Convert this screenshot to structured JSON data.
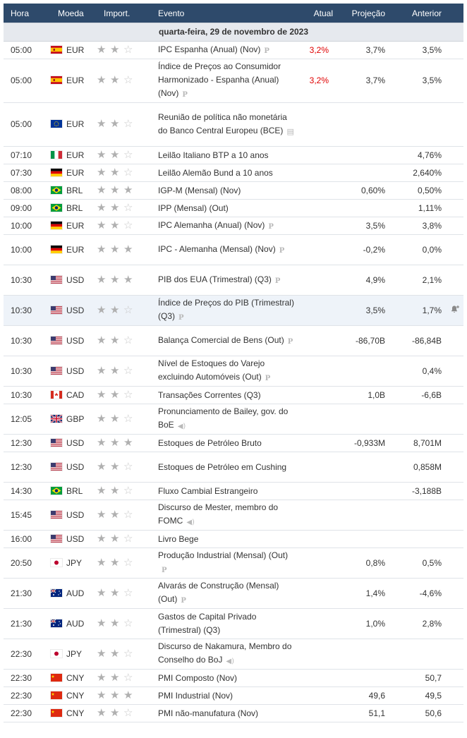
{
  "headers": {
    "time": "Hora",
    "currency": "Moeda",
    "importance": "Import.",
    "event": "Evento",
    "actual": "Atual",
    "forecast": "Projeção",
    "previous": "Anterior"
  },
  "date_label": "quarta-feira, 29 de novembro de 2023",
  "colors": {
    "header_bg": "#2e4a6b",
    "actual_red": "#e00000",
    "date_row_bg": "#e6e9ee",
    "highlight_row_bg": "#eef3f9"
  },
  "rows": [
    {
      "time": "05:00",
      "country": "spain",
      "currency": "EUR",
      "stars": 2,
      "event": "IPC Espanha (Anual) (Nov)",
      "icon": "preliminary-icon",
      "icon_glyph": "P",
      "actual": "3,2%",
      "forecast": "3,7%",
      "previous": "3,5%"
    },
    {
      "time": "05:00",
      "country": "spain",
      "currency": "EUR",
      "stars": 2,
      "event": "Índice de Preços ao Consumidor Harmonizado - Espanha (Anual) (Nov)",
      "icon": "preliminary-icon",
      "icon_glyph": "P",
      "actual": "3,2%",
      "forecast": "3,7%",
      "previous": "3,5%"
    },
    {
      "time": "05:00",
      "country": "eu",
      "currency": "EUR",
      "stars": 2,
      "event": "Reunião de política não monetária do Banco Central Europeu (BCE)",
      "icon": "document-icon",
      "icon_glyph": "▤",
      "actual": "",
      "forecast": "",
      "previous": ""
    },
    {
      "time": "07:10",
      "country": "italy",
      "currency": "EUR",
      "stars": 2,
      "event": "Leilão Italiano BTP a 10 anos",
      "icon": "",
      "icon_glyph": "",
      "actual": "",
      "forecast": "",
      "previous": "4,76%"
    },
    {
      "time": "07:30",
      "country": "germany",
      "currency": "EUR",
      "stars": 2,
      "event": "Leilão Alemão Bund a 10 anos",
      "icon": "",
      "icon_glyph": "",
      "actual": "",
      "forecast": "",
      "previous": "2,640%"
    },
    {
      "time": "08:00",
      "country": "brazil",
      "currency": "BRL",
      "stars": 3,
      "event": "IGP-M (Mensal) (Nov)",
      "icon": "",
      "icon_glyph": "",
      "actual": "",
      "forecast": "0,60%",
      "previous": "0,50%"
    },
    {
      "time": "09:00",
      "country": "brazil",
      "currency": "BRL",
      "stars": 2,
      "event": "IPP (Mensal) (Out)",
      "icon": "",
      "icon_glyph": "",
      "actual": "",
      "forecast": "",
      "previous": "1,11%"
    },
    {
      "time": "10:00",
      "country": "germany",
      "currency": "EUR",
      "stars": 2,
      "event": "IPC Alemanha (Anual) (Nov)",
      "icon": "preliminary-icon",
      "icon_glyph": "P",
      "actual": "",
      "forecast": "3,5%",
      "previous": "3,8%"
    },
    {
      "time": "10:00",
      "country": "germany",
      "currency": "EUR",
      "stars": 3,
      "event": "IPC - Alemanha (Mensal) (Nov)",
      "icon": "preliminary-icon",
      "icon_glyph": "P",
      "actual": "",
      "forecast": "-0,2%",
      "previous": "0,0%"
    },
    {
      "time": "10:30",
      "country": "usa",
      "currency": "USD",
      "stars": 3,
      "event": "PIB dos EUA (Trimestral) (Q3)",
      "icon": "preliminary-icon",
      "icon_glyph": "P",
      "actual": "",
      "forecast": "4,9%",
      "previous": "2,1%"
    },
    {
      "time": "10:30",
      "country": "usa",
      "currency": "USD",
      "stars": 2,
      "event": "Índice de Preços do PIB (Trimestral) (Q3)",
      "icon": "preliminary-icon",
      "icon_glyph": "P",
      "actual": "",
      "forecast": "3,5%",
      "previous": "1,7%",
      "highlight": true,
      "alert": true
    },
    {
      "time": "10:30",
      "country": "usa",
      "currency": "USD",
      "stars": 2,
      "event": "Balança Comercial de Bens (Out)",
      "icon": "preliminary-icon",
      "icon_glyph": "P",
      "actual": "",
      "forecast": "-86,70B",
      "previous": "-86,84B"
    },
    {
      "time": "10:30",
      "country": "usa",
      "currency": "USD",
      "stars": 2,
      "event": "Nível de Estoques do Varejo excluindo Automóveis (Out)",
      "icon": "preliminary-icon",
      "icon_glyph": "P",
      "actual": "",
      "forecast": "",
      "previous": "0,4%"
    },
    {
      "time": "10:30",
      "country": "canada",
      "currency": "CAD",
      "stars": 2,
      "event": "Transações Correntes (Q3)",
      "icon": "",
      "icon_glyph": "",
      "actual": "",
      "forecast": "1,0B",
      "previous": "-6,6B"
    },
    {
      "time": "12:05",
      "country": "uk",
      "currency": "GBP",
      "stars": 2,
      "event": "Pronunciamento de Bailey, gov. do BoE",
      "icon": "speaker-icon",
      "icon_glyph": "◀)",
      "actual": "",
      "forecast": "",
      "previous": ""
    },
    {
      "time": "12:30",
      "country": "usa",
      "currency": "USD",
      "stars": 3,
      "event": "Estoques de Petróleo Bruto",
      "icon": "",
      "icon_glyph": "",
      "actual": "",
      "forecast": "-0,933M",
      "previous": "8,701M"
    },
    {
      "time": "12:30",
      "country": "usa",
      "currency": "USD",
      "stars": 2,
      "event": "Estoques de Petróleo em Cushing",
      "icon": "",
      "icon_glyph": "",
      "actual": "",
      "forecast": "",
      "previous": "0,858M"
    },
    {
      "time": "14:30",
      "country": "brazil",
      "currency": "BRL",
      "stars": 2,
      "event": "Fluxo Cambial Estrangeiro",
      "icon": "",
      "icon_glyph": "",
      "actual": "",
      "forecast": "",
      "previous": "-3,188B"
    },
    {
      "time": "15:45",
      "country": "usa",
      "currency": "USD",
      "stars": 2,
      "event": "Discurso de Mester, membro do FOMC",
      "icon": "speaker-icon",
      "icon_glyph": "◀)",
      "actual": "",
      "forecast": "",
      "previous": ""
    },
    {
      "time": "16:00",
      "country": "usa",
      "currency": "USD",
      "stars": 2,
      "event": "Livro Bege",
      "icon": "",
      "icon_glyph": "",
      "actual": "",
      "forecast": "",
      "previous": ""
    },
    {
      "time": "20:50",
      "country": "japan",
      "currency": "JPY",
      "stars": 2,
      "event": "Produção Industrial (Mensal) (Out)",
      "icon": "preliminary-icon",
      "icon_glyph": "P",
      "actual": "",
      "forecast": "0,8%",
      "previous": "0,5%"
    },
    {
      "time": "21:30",
      "country": "australia",
      "currency": "AUD",
      "stars": 2,
      "event": "Alvarás de Construção (Mensal) (Out)",
      "icon": "preliminary-icon",
      "icon_glyph": "P",
      "actual": "",
      "forecast": "1,4%",
      "previous": "-4,6%"
    },
    {
      "time": "21:30",
      "country": "australia",
      "currency": "AUD",
      "stars": 2,
      "event": "Gastos de Capital Privado (Trimestral) (Q3)",
      "icon": "",
      "icon_glyph": "",
      "actual": "",
      "forecast": "1,0%",
      "previous": "2,8%"
    },
    {
      "time": "22:30",
      "country": "japan",
      "currency": "JPY",
      "stars": 2,
      "event": "Discurso de Nakamura, Membro do Conselho do BoJ",
      "icon": "speaker-icon",
      "icon_glyph": "◀)",
      "actual": "",
      "forecast": "",
      "previous": ""
    },
    {
      "time": "22:30",
      "country": "china",
      "currency": "CNY",
      "stars": 2,
      "event": "PMI Composto (Nov)",
      "icon": "",
      "icon_glyph": "",
      "actual": "",
      "forecast": "",
      "previous": "50,7"
    },
    {
      "time": "22:30",
      "country": "china",
      "currency": "CNY",
      "stars": 3,
      "event": "PMI Industrial (Nov)",
      "icon": "",
      "icon_glyph": "",
      "actual": "",
      "forecast": "49,6",
      "previous": "49,5"
    },
    {
      "time": "22:30",
      "country": "china",
      "currency": "CNY",
      "stars": 2,
      "event": "PMI não-manufatura (Nov)",
      "icon": "",
      "icon_glyph": "",
      "actual": "",
      "forecast": "51,1",
      "previous": "50,6"
    }
  ]
}
